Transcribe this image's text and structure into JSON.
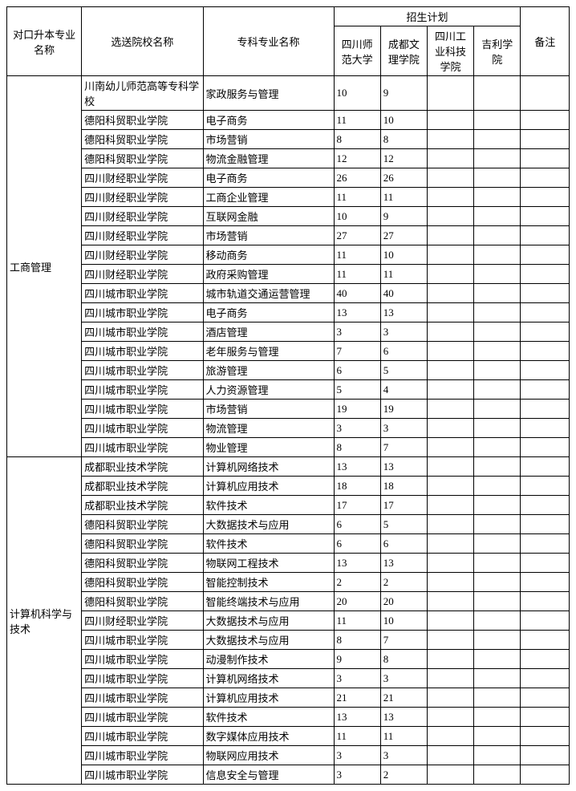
{
  "headers": {
    "major": "对口升本专业名称",
    "school": "选送院校名称",
    "spec": "专科专业名称",
    "plan_group": "招生计划",
    "plan1": "四川师范大学",
    "plan2": "成都文理学院",
    "plan3": "四川工业科技学院",
    "plan4": "吉利学院",
    "note": "备注"
  },
  "majors": [
    {
      "name": "工商管理",
      "rows": [
        {
          "school": "川南幼儿师范高等专科学校",
          "spec": "家政服务与管理",
          "p1": "10",
          "p2": "9",
          "p3": "",
          "p4": "",
          "note": ""
        },
        {
          "school": "德阳科贸职业学院",
          "spec": "电子商务",
          "p1": "11",
          "p2": "10",
          "p3": "",
          "p4": "",
          "note": ""
        },
        {
          "school": "德阳科贸职业学院",
          "spec": "市场营销",
          "p1": "8",
          "p2": "8",
          "p3": "",
          "p4": "",
          "note": ""
        },
        {
          "school": "德阳科贸职业学院",
          "spec": "物流金融管理",
          "p1": "12",
          "p2": "12",
          "p3": "",
          "p4": "",
          "note": ""
        },
        {
          "school": "四川财经职业学院",
          "spec": "电子商务",
          "p1": "26",
          "p2": "26",
          "p3": "",
          "p4": "",
          "note": ""
        },
        {
          "school": "四川财经职业学院",
          "spec": "工商企业管理",
          "p1": "11",
          "p2": "11",
          "p3": "",
          "p4": "",
          "note": ""
        },
        {
          "school": "四川财经职业学院",
          "spec": "互联网金融",
          "p1": "10",
          "p2": "9",
          "p3": "",
          "p4": "",
          "note": ""
        },
        {
          "school": "四川财经职业学院",
          "spec": "市场营销",
          "p1": "27",
          "p2": "27",
          "p3": "",
          "p4": "",
          "note": ""
        },
        {
          "school": "四川财经职业学院",
          "spec": "移动商务",
          "p1": "11",
          "p2": "10",
          "p3": "",
          "p4": "",
          "note": ""
        },
        {
          "school": "四川财经职业学院",
          "spec": "政府采购管理",
          "p1": "11",
          "p2": "11",
          "p3": "",
          "p4": "",
          "note": ""
        },
        {
          "school": "四川城市职业学院",
          "spec": "城市轨道交通运营管理",
          "p1": "40",
          "p2": "40",
          "p3": "",
          "p4": "",
          "note": ""
        },
        {
          "school": "四川城市职业学院",
          "spec": "电子商务",
          "p1": "13",
          "p2": "13",
          "p3": "",
          "p4": "",
          "note": ""
        },
        {
          "school": "四川城市职业学院",
          "spec": "酒店管理",
          "p1": "3",
          "p2": "3",
          "p3": "",
          "p4": "",
          "note": ""
        },
        {
          "school": "四川城市职业学院",
          "spec": "老年服务与管理",
          "p1": "7",
          "p2": "6",
          "p3": "",
          "p4": "",
          "note": ""
        },
        {
          "school": "四川城市职业学院",
          "spec": "旅游管理",
          "p1": "6",
          "p2": "5",
          "p3": "",
          "p4": "",
          "note": ""
        },
        {
          "school": "四川城市职业学院",
          "spec": "人力资源管理",
          "p1": "5",
          "p2": "4",
          "p3": "",
          "p4": "",
          "note": ""
        },
        {
          "school": "四川城市职业学院",
          "spec": "市场营销",
          "p1": "19",
          "p2": "19",
          "p3": "",
          "p4": "",
          "note": ""
        },
        {
          "school": "四川城市职业学院",
          "spec": "物流管理",
          "p1": "3",
          "p2": "3",
          "p3": "",
          "p4": "",
          "note": ""
        },
        {
          "school": "四川城市职业学院",
          "spec": "物业管理",
          "p1": "8",
          "p2": "7",
          "p3": "",
          "p4": "",
          "note": ""
        }
      ]
    },
    {
      "name": "计算机科学与技术",
      "rows": [
        {
          "school": "成都职业技术学院",
          "spec": "计算机网络技术",
          "p1": "13",
          "p2": "13",
          "p3": "",
          "p4": "",
          "note": ""
        },
        {
          "school": "成都职业技术学院",
          "spec": "计算机应用技术",
          "p1": "18",
          "p2": "18",
          "p3": "",
          "p4": "",
          "note": ""
        },
        {
          "school": "成都职业技术学院",
          "spec": "软件技术",
          "p1": "17",
          "p2": "17",
          "p3": "",
          "p4": "",
          "note": ""
        },
        {
          "school": "德阳科贸职业学院",
          "spec": "大数据技术与应用",
          "p1": "6",
          "p2": "5",
          "p3": "",
          "p4": "",
          "note": ""
        },
        {
          "school": "德阳科贸职业学院",
          "spec": "软件技术",
          "p1": "6",
          "p2": "6",
          "p3": "",
          "p4": "",
          "note": ""
        },
        {
          "school": "德阳科贸职业学院",
          "spec": "物联网工程技术",
          "p1": "13",
          "p2": "13",
          "p3": "",
          "p4": "",
          "note": ""
        },
        {
          "school": "德阳科贸职业学院",
          "spec": "智能控制技术",
          "p1": "2",
          "p2": "2",
          "p3": "",
          "p4": "",
          "note": ""
        },
        {
          "school": "德阳科贸职业学院",
          "spec": "智能终端技术与应用",
          "p1": "20",
          "p2": "20",
          "p3": "",
          "p4": "",
          "note": ""
        },
        {
          "school": "四川财经职业学院",
          "spec": "大数据技术与应用",
          "p1": "11",
          "p2": "10",
          "p3": "",
          "p4": "",
          "note": ""
        },
        {
          "school": "四川城市职业学院",
          "spec": "大数据技术与应用",
          "p1": "8",
          "p2": "7",
          "p3": "",
          "p4": "",
          "note": ""
        },
        {
          "school": "四川城市职业学院",
          "spec": "动漫制作技术",
          "p1": "9",
          "p2": "8",
          "p3": "",
          "p4": "",
          "note": ""
        },
        {
          "school": "四川城市职业学院",
          "spec": "计算机网络技术",
          "p1": "3",
          "p2": "3",
          "p3": "",
          "p4": "",
          "note": ""
        },
        {
          "school": "四川城市职业学院",
          "spec": "计算机应用技术",
          "p1": "21",
          "p2": "21",
          "p3": "",
          "p4": "",
          "note": ""
        },
        {
          "school": "四川城市职业学院",
          "spec": "软件技术",
          "p1": "13",
          "p2": "13",
          "p3": "",
          "p4": "",
          "note": ""
        },
        {
          "school": "四川城市职业学院",
          "spec": "数字媒体应用技术",
          "p1": "11",
          "p2": "11",
          "p3": "",
          "p4": "",
          "note": ""
        },
        {
          "school": "四川城市职业学院",
          "spec": "物联网应用技术",
          "p1": "3",
          "p2": "3",
          "p3": "",
          "p4": "",
          "note": ""
        },
        {
          "school": "四川城市职业学院",
          "spec": "信息安全与管理",
          "p1": "3",
          "p2": "2",
          "p3": "",
          "p4": "",
          "note": ""
        }
      ]
    }
  ]
}
